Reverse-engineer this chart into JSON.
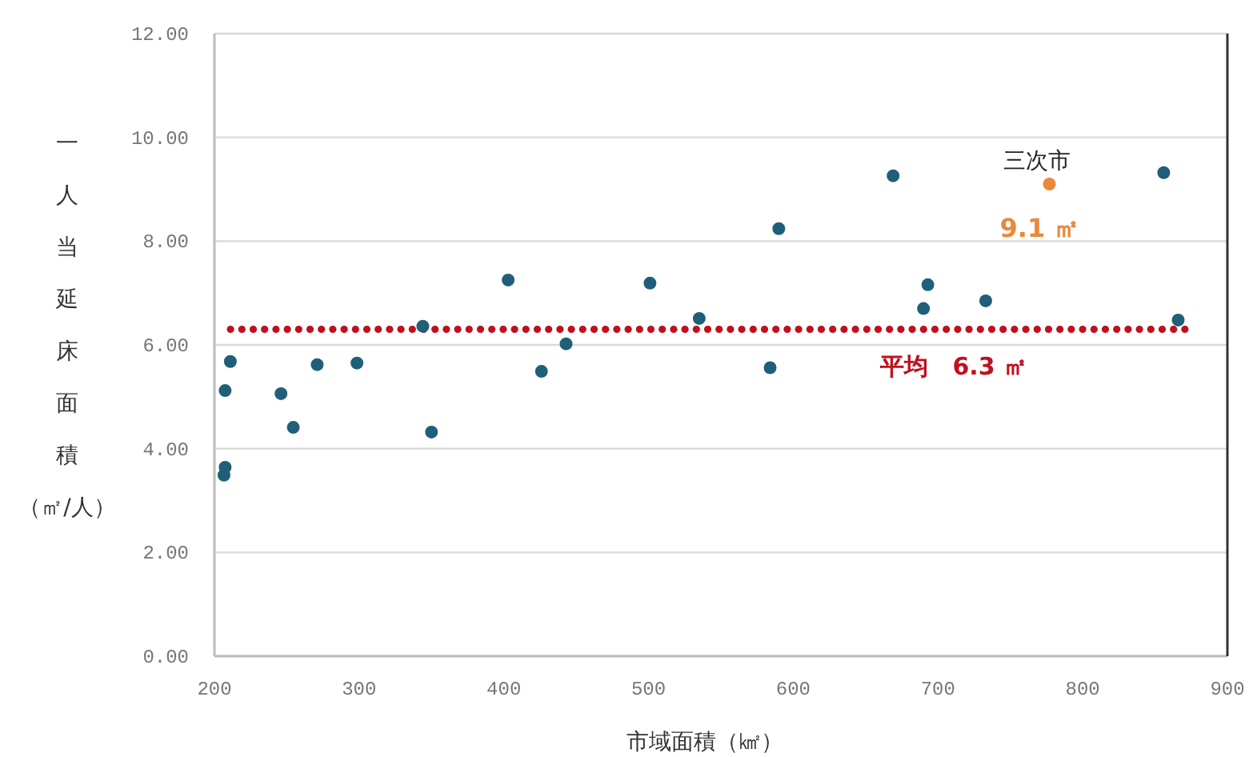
{
  "chart_data": {
    "type": "scatter",
    "xlabel": "市域面積（㎢）",
    "ylabel": "一人当延床面積（㎡/人）",
    "xlim": [
      200,
      900
    ],
    "xticks": [
      200,
      300,
      400,
      500,
      600,
      700,
      800,
      900
    ],
    "ylim": [
      0,
      12
    ],
    "yticks": [
      {
        "value": 0,
        "label": "0.00"
      },
      {
        "value": 2,
        "label": "2.00"
      },
      {
        "value": 4,
        "label": "4.00"
      },
      {
        "value": 6,
        "label": "6.00"
      },
      {
        "value": 8,
        "label": "8.00"
      },
      {
        "value": 10,
        "label": "10.00"
      },
      {
        "value": 12,
        "label": "12.00"
      }
    ],
    "grid": "y",
    "marker": "circle",
    "series": [
      {
        "color": "#1f5f7a",
        "x": [
          206.6,
          207.4,
          207.4,
          211,
          246,
          254.5,
          271,
          298.5,
          344,
          350,
          403,
          426,
          443,
          501,
          535,
          584,
          590,
          669,
          690,
          693,
          733,
          856,
          866
        ],
        "values": [
          3.49,
          3.64,
          5.12,
          5.68,
          5.06,
          4.41,
          5.62,
          5.65,
          6.36,
          4.32,
          7.25,
          5.49,
          6.02,
          7.19,
          6.51,
          5.56,
          8.24,
          9.26,
          6.7,
          7.16,
          6.85,
          9.32,
          6.48
        ]
      },
      {
        "name": "三次市",
        "color": "#e9893a",
        "x": [
          777
        ],
        "values": [
          9.1
        ],
        "value_labels": [
          "9.1 ㎡"
        ]
      }
    ],
    "ref_lines": [
      {
        "axis": "y",
        "value": 6.3,
        "label": "平均　6.3 ㎡",
        "color": "#c0101e",
        "line_style": "dotted"
      }
    ]
  }
}
